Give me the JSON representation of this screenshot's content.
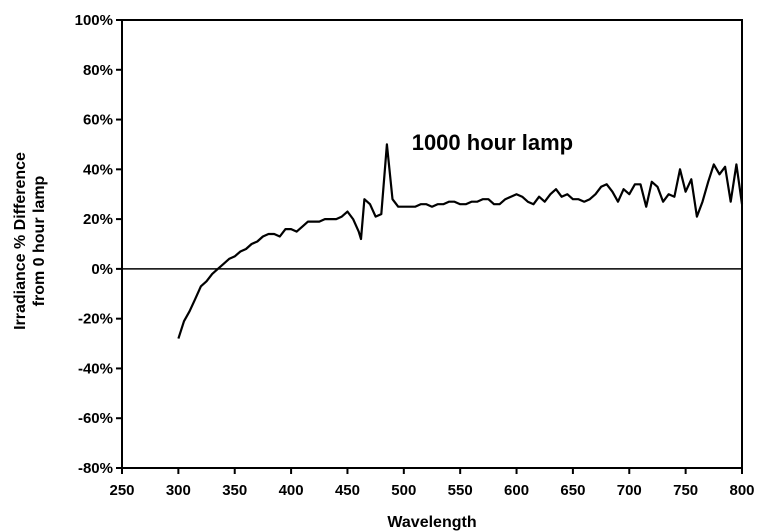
{
  "chart_data": {
    "type": "line",
    "title": "",
    "xlabel": "Wavelength",
    "ylabel_lines": [
      "Irradiance % Difference",
      "from 0 hour lamp"
    ],
    "xlim": [
      250,
      800
    ],
    "ylim": [
      -80,
      100
    ],
    "x_ticks": [
      250,
      300,
      350,
      400,
      450,
      500,
      550,
      600,
      650,
      700,
      750,
      800
    ],
    "x_tick_labels": [
      "250",
      "300",
      "350",
      "400",
      "450",
      "500",
      "550",
      "600",
      "650",
      "700",
      "750",
      "800"
    ],
    "y_ticks": [
      -80,
      -60,
      -40,
      -20,
      0,
      20,
      40,
      60,
      80,
      100
    ],
    "y_tick_labels": [
      "-80%",
      "-60%",
      "-40%",
      "-20%",
      "0%",
      "20%",
      "40%",
      "60%",
      "80%",
      "100%"
    ],
    "grid": false,
    "reference_line_y": 0,
    "annotations": [
      {
        "text": "1000 hour lamp",
        "x": 507,
        "y": 51
      }
    ],
    "series": [
      {
        "color": "#000000",
        "x": [
          300,
          305,
          310,
          315,
          320,
          325,
          330,
          335,
          340,
          345,
          350,
          355,
          360,
          365,
          370,
          375,
          380,
          385,
          390,
          395,
          400,
          405,
          410,
          415,
          420,
          425,
          430,
          435,
          440,
          445,
          450,
          455,
          460,
          462,
          465,
          470,
          475,
          480,
          485,
          490,
          495,
          500,
          505,
          510,
          515,
          520,
          525,
          530,
          535,
          540,
          545,
          550,
          555,
          560,
          565,
          570,
          575,
          580,
          585,
          590,
          595,
          600,
          605,
          610,
          615,
          620,
          625,
          630,
          635,
          640,
          645,
          650,
          655,
          660,
          665,
          670,
          675,
          680,
          685,
          690,
          695,
          700,
          705,
          710,
          715,
          720,
          725,
          730,
          735,
          740,
          745,
          750,
          755,
          760,
          765,
          770,
          775,
          780,
          785,
          790,
          795,
          800
        ],
        "y": [
          -28,
          -21,
          -17,
          -12,
          -7,
          -5,
          -2,
          0,
          2,
          4,
          5,
          7,
          8,
          10,
          11,
          13,
          14,
          14,
          13,
          16,
          16,
          15,
          17,
          19,
          19,
          19,
          20,
          20,
          20,
          21,
          23,
          20,
          15,
          12,
          28,
          26,
          21,
          22,
          50,
          28,
          25,
          25,
          25,
          25,
          26,
          26,
          25,
          26,
          26,
          27,
          27,
          26,
          26,
          27,
          27,
          28,
          28,
          26,
          26,
          28,
          29,
          30,
          29,
          27,
          26,
          29,
          27,
          30,
          32,
          29,
          30,
          28,
          28,
          27,
          28,
          30,
          33,
          34,
          31,
          27,
          32,
          30,
          34,
          34,
          25,
          35,
          33,
          27,
          30,
          29,
          40,
          31,
          36,
          21,
          27,
          35,
          42,
          38,
          41,
          27,
          42,
          26
        ]
      }
    ]
  }
}
